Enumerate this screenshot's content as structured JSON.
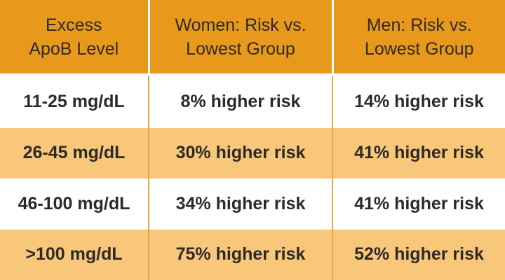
{
  "table": {
    "header": [
      "Excess\nApoB Level",
      "Women: Risk vs.\nLowest Group",
      "Men: Risk vs.\nLowest Group"
    ],
    "rows": [
      [
        "11-25 mg/dL",
        "8% higher risk",
        "14% higher risk"
      ],
      [
        "26-45 mg/dL",
        "30% higher risk",
        "41% higher risk"
      ],
      [
        "46-100 mg/dL",
        "34% higher risk",
        "41% higher risk"
      ],
      [
        ">100 mg/dL",
        "75% higher risk",
        "52% higher risk"
      ]
    ]
  }
}
